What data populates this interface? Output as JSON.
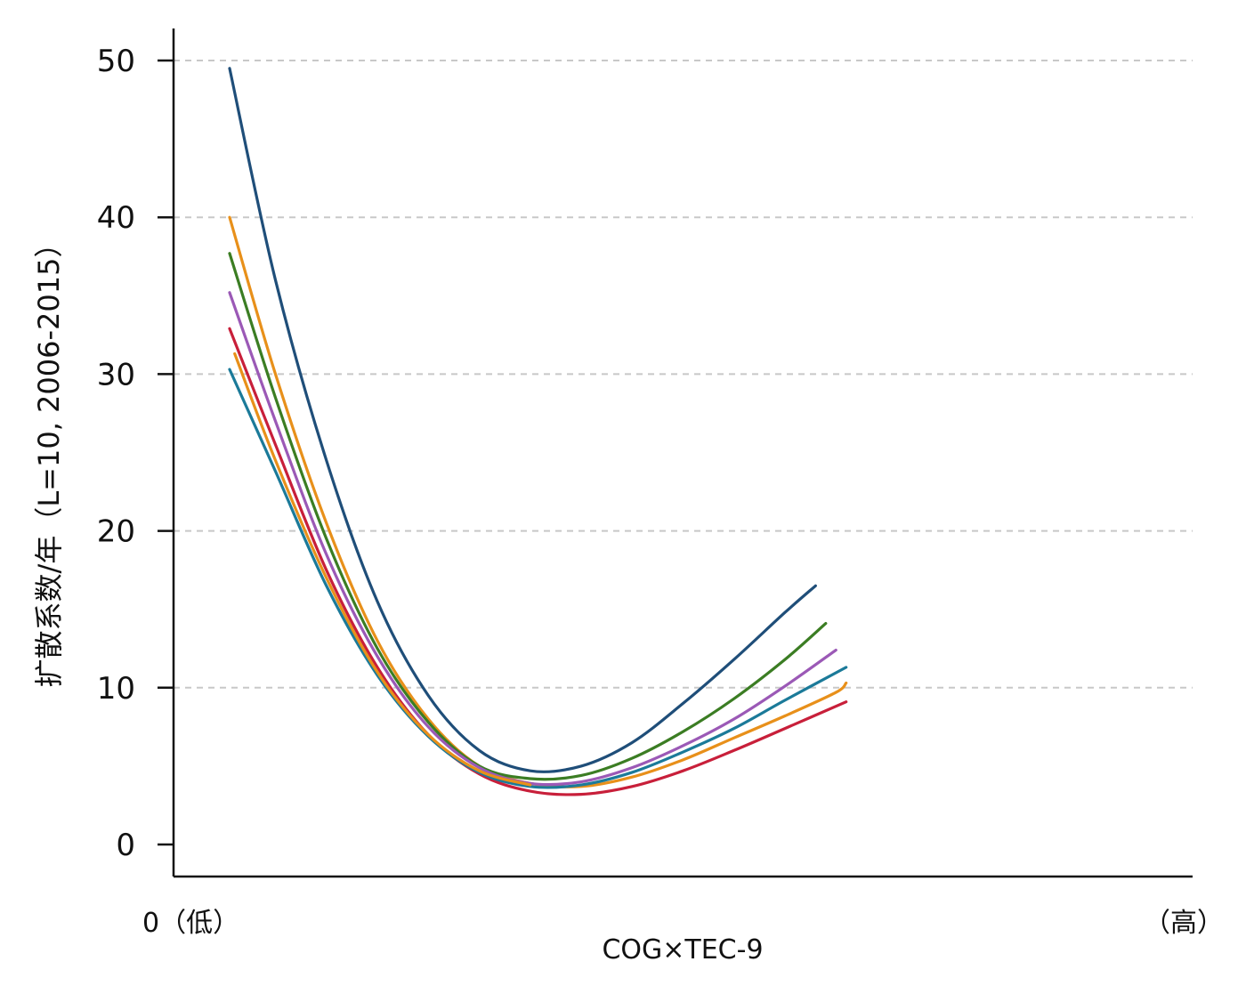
{
  "chart_data": {
    "type": "line",
    "title": "",
    "xlabel": "COG×TEC-9",
    "ylabel": "扩散系数/年（L=10, 2006-2015）",
    "x_tick_left": "0（低）",
    "x_tick_right": "（高）",
    "xlim": [
      0,
      10
    ],
    "ylim": [
      -2,
      52
    ],
    "yticks": [
      0,
      10,
      20,
      30,
      40,
      50
    ],
    "grid": "horizontal dashed",
    "legend": "none",
    "series": [
      {
        "color": "#1f4e79",
        "x": [
          0.55,
          1.0,
          1.5,
          2.0,
          2.5,
          3.0,
          3.5,
          4.0,
          4.5,
          5.0,
          5.5,
          6.0,
          6.3
        ],
        "y": [
          49.5,
          36.0,
          24.5,
          15.5,
          9.5,
          6.0,
          4.7,
          5.0,
          6.5,
          9.0,
          11.8,
          14.8,
          16.5
        ]
      },
      {
        "color": "#e8901a",
        "x": [
          0.55,
          1.0,
          1.5,
          2.0,
          2.5,
          3.0,
          3.5,
          4.0,
          4.5,
          5.0,
          5.5,
          6.0,
          6.5,
          6.6
        ],
        "y": [
          40.0,
          30.0,
          20.5,
          13.0,
          8.0,
          5.0,
          3.9,
          3.7,
          4.3,
          5.4,
          6.8,
          8.2,
          9.7,
          10.3
        ]
      },
      {
        "color": "#3b7d23",
        "x": [
          0.55,
          1.0,
          1.5,
          2.0,
          2.5,
          3.0,
          3.5,
          4.0,
          4.5,
          5.0,
          5.5,
          6.0,
          6.4
        ],
        "y": [
          37.7,
          28.5,
          19.5,
          12.5,
          7.8,
          5.0,
          4.2,
          4.4,
          5.5,
          7.2,
          9.3,
          11.8,
          14.1
        ]
      },
      {
        "color": "#9b59b6",
        "x": [
          0.55,
          1.0,
          1.5,
          2.0,
          2.5,
          3.0,
          3.5,
          4.0,
          4.5,
          5.0,
          5.5,
          6.0,
          6.5
        ],
        "y": [
          35.2,
          27.0,
          18.5,
          12.0,
          7.5,
          4.9,
          3.9,
          4.0,
          4.9,
          6.3,
          8.0,
          10.1,
          12.4
        ]
      },
      {
        "color": "#c81f3a",
        "x": [
          0.55,
          1.0,
          1.5,
          2.0,
          2.5,
          3.0,
          3.5,
          4.0,
          4.5,
          5.0,
          5.5,
          6.0,
          6.6
        ],
        "y": [
          32.9,
          25.5,
          17.5,
          11.3,
          7.0,
          4.5,
          3.4,
          3.2,
          3.7,
          4.7,
          6.0,
          7.4,
          9.1
        ]
      },
      {
        "color": "#1b7a99",
        "x": [
          0.55,
          1.0,
          1.5,
          2.0,
          2.5,
          3.0,
          3.5,
          4.0,
          4.5,
          5.0,
          5.5,
          6.0,
          6.6
        ],
        "y": [
          30.3,
          23.8,
          16.5,
          10.8,
          6.9,
          4.6,
          3.7,
          3.8,
          4.6,
          5.9,
          7.4,
          9.2,
          11.3
        ]
      },
      {
        "color": "#e8901a",
        "x": [
          0.6,
          1.0,
          1.5,
          2.0,
          2.5,
          3.0,
          3.5
        ],
        "y": [
          31.3,
          24.5,
          17.0,
          11.0,
          7.0,
          4.7,
          3.8
        ]
      }
    ]
  }
}
